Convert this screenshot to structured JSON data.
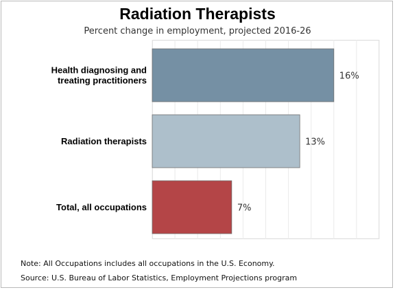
{
  "chart_data": {
    "type": "bar",
    "orientation": "horizontal",
    "title": "Radiation Therapists",
    "subtitle": "Percent change in employment, projected 2016-26",
    "categories": [
      "Health diagnosing and treating practitioners",
      "Radiation therapists",
      "Total, all occupations"
    ],
    "values": [
      16,
      13,
      7
    ],
    "value_labels": [
      "16%",
      "13%",
      "7%"
    ],
    "colors": [
      "#7590a4",
      "#adbfcb",
      "#b44547"
    ],
    "xlim": [
      0,
      20
    ],
    "grid": true,
    "legend": "none"
  },
  "notes": {
    "note": "Note: All Occupations includes all occupations in the U.S. Economy.",
    "source": "Source: U.S. Bureau of Labor Statistics, Employment Projections program"
  }
}
